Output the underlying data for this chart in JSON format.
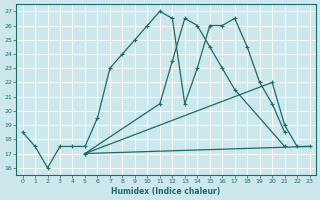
{
  "xlabel": "Humidex (Indice chaleur)",
  "bg_color": "#cce8ec",
  "grid_color": "#b0d8dc",
  "line_color": "#1a6b6b",
  "xlim": [
    -0.5,
    23.5
  ],
  "ylim": [
    15.5,
    27.5
  ],
  "yticks": [
    16,
    17,
    18,
    19,
    20,
    21,
    22,
    23,
    24,
    25,
    26,
    27
  ],
  "xticks": [
    0,
    1,
    2,
    3,
    4,
    5,
    6,
    7,
    8,
    9,
    10,
    11,
    12,
    13,
    14,
    15,
    16,
    17,
    18,
    19,
    20,
    21,
    22,
    23
  ],
  "line1_x": [
    0,
    1,
    2,
    3,
    4,
    5,
    6,
    7,
    8,
    9,
    10,
    11,
    12,
    13,
    14,
    15,
    16,
    17,
    18,
    19,
    20,
    21
  ],
  "line1_y": [
    18.5,
    17.5,
    16.0,
    17.5,
    17.5,
    17.5,
    19.5,
    23.0,
    24.0,
    25.0,
    26.0,
    27.0,
    26.5,
    20.5,
    23.0,
    26.0,
    26.0,
    26.5,
    24.5,
    22.0,
    20.5,
    18.5
  ],
  "line2_x": [
    5,
    11,
    12,
    13,
    14,
    15,
    16,
    17,
    21
  ],
  "line2_y": [
    17.0,
    20.5,
    23.5,
    26.5,
    26.0,
    24.5,
    23.0,
    21.5,
    17.5
  ],
  "line3_x": [
    5,
    20,
    21,
    22,
    23
  ],
  "line3_y": [
    17.0,
    22.0,
    19.0,
    17.5,
    17.5
  ],
  "line4_x": [
    5,
    23
  ],
  "line4_y": [
    17.0,
    17.5
  ]
}
